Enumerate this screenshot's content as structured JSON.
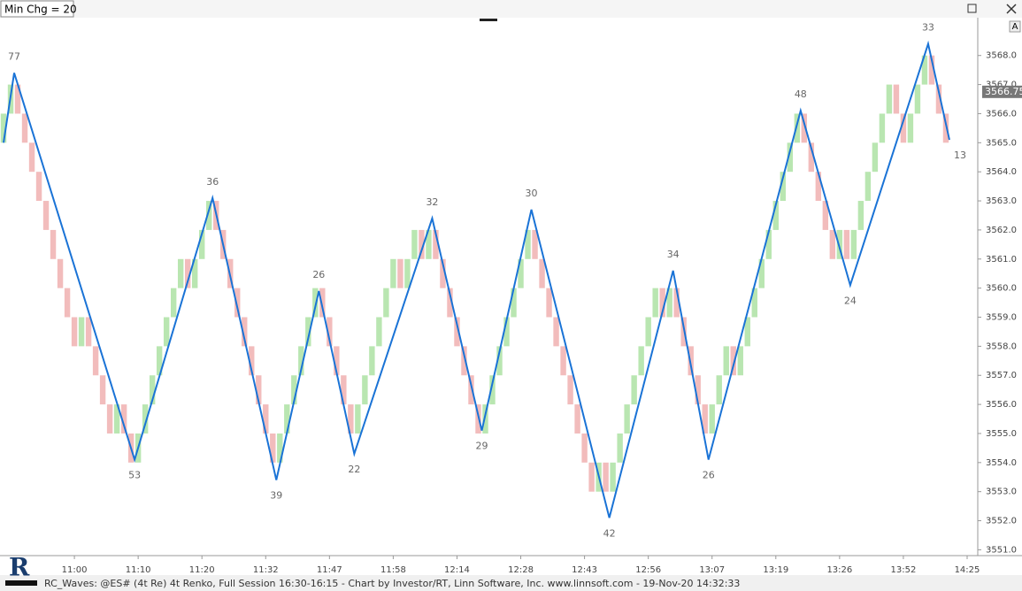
{
  "chart_data": {
    "type": "renko",
    "indicator_label": "Min Chg = 20",
    "footer": "RC_Waves: @ES# (4t Re) 4t Renko, Full Session 16:30-16:15 - Chart by Investor/RT, Linn Software, Inc. www.linnsoft.com - 19-Nov-20 14:32:33",
    "button": "A",
    "up_color": "#b9e6b1",
    "down_color": "#f2bcbc",
    "line_color": "#1a73d6",
    "xlim": [
      -0.5,
      137.5
    ],
    "ylim": [
      3550.8,
      3569.3
    ],
    "yticks": [
      {
        "value": 3551,
        "label": "3551.0"
      },
      {
        "value": 3552,
        "label": "3552.0"
      },
      {
        "value": 3553,
        "label": "3553.0"
      },
      {
        "value": 3554,
        "label": "3554.0"
      },
      {
        "value": 3555,
        "label": "3555.0"
      },
      {
        "value": 3556,
        "label": "3556.0"
      },
      {
        "value": 3557,
        "label": "3557.0"
      },
      {
        "value": 3558,
        "label": "3558.0"
      },
      {
        "value": 3559,
        "label": "3559.0"
      },
      {
        "value": 3560,
        "label": "3560.0"
      },
      {
        "value": 3561,
        "label": "3561.0"
      },
      {
        "value": 3562,
        "label": "3562.0"
      },
      {
        "value": 3563,
        "label": "3563.0"
      },
      {
        "value": 3564,
        "label": "3564.0"
      },
      {
        "value": 3565,
        "label": "3565.0"
      },
      {
        "value": 3566,
        "label": "3566.0"
      },
      {
        "value": 3567,
        "label": "3567.0"
      },
      {
        "value": 3568,
        "label": "3568.0"
      }
    ],
    "xticks": [
      {
        "value": 10,
        "label": "11:00"
      },
      {
        "value": 19,
        "label": "11:10"
      },
      {
        "value": 28,
        "label": "11:20"
      },
      {
        "value": 37,
        "label": "11:32"
      },
      {
        "value": 46,
        "label": "11:47"
      },
      {
        "value": 55,
        "label": "11:58"
      },
      {
        "value": 64,
        "label": "12:14"
      },
      {
        "value": 73,
        "label": "12:28"
      },
      {
        "value": 82,
        "label": "12:43"
      },
      {
        "value": 91,
        "label": "12:56"
      },
      {
        "value": 100,
        "label": "13:07"
      },
      {
        "value": 109,
        "label": "13:19"
      },
      {
        "value": 118,
        "label": "13:26"
      },
      {
        "value": 127,
        "label": "13:52"
      },
      {
        "value": 136,
        "label": "14:25"
      }
    ],
    "last_price": {
      "value": 3566.75,
      "label": "3566.75"
    },
    "bricks": [
      [
        3565,
        3566
      ],
      [
        3566,
        3567
      ],
      [
        3567,
        3566
      ],
      [
        3566,
        3565
      ],
      [
        3565,
        3564
      ],
      [
        3564,
        3563
      ],
      [
        3563,
        3562
      ],
      [
        3562,
        3561
      ],
      [
        3561,
        3560
      ],
      [
        3560,
        3559
      ],
      [
        3559,
        3558
      ],
      [
        3558,
        3559
      ],
      [
        3559,
        3558
      ],
      [
        3558,
        3557
      ],
      [
        3557,
        3556
      ],
      [
        3556,
        3555
      ],
      [
        3555,
        3556
      ],
      [
        3556,
        3555
      ],
      [
        3555,
        3554
      ],
      [
        3554,
        3555
      ],
      [
        3555,
        3556
      ],
      [
        3556,
        3557
      ],
      [
        3557,
        3558
      ],
      [
        3558,
        3559
      ],
      [
        3559,
        3560
      ],
      [
        3560,
        3561
      ],
      [
        3561,
        3560
      ],
      [
        3560,
        3561
      ],
      [
        3561,
        3562
      ],
      [
        3562,
        3563
      ],
      [
        3563,
        3562
      ],
      [
        3562,
        3561
      ],
      [
        3561,
        3560
      ],
      [
        3560,
        3559
      ],
      [
        3559,
        3558
      ],
      [
        3558,
        3557
      ],
      [
        3557,
        3556
      ],
      [
        3556,
        3555
      ],
      [
        3555,
        3554
      ],
      [
        3554,
        3555
      ],
      [
        3555,
        3556
      ],
      [
        3556,
        3557
      ],
      [
        3557,
        3558
      ],
      [
        3558,
        3559
      ],
      [
        3559,
        3560
      ],
      [
        3560,
        3559
      ],
      [
        3559,
        3558
      ],
      [
        3558,
        3557
      ],
      [
        3557,
        3556
      ],
      [
        3556,
        3555
      ],
      [
        3555,
        3556
      ],
      [
        3556,
        3557
      ],
      [
        3557,
        3558
      ],
      [
        3558,
        3559
      ],
      [
        3559,
        3560
      ],
      [
        3560,
        3561
      ],
      [
        3561,
        3560
      ],
      [
        3560,
        3561
      ],
      [
        3561,
        3562
      ],
      [
        3562,
        3561
      ],
      [
        3561,
        3562
      ],
      [
        3562,
        3561
      ],
      [
        3561,
        3560
      ],
      [
        3560,
        3559
      ],
      [
        3559,
        3558
      ],
      [
        3558,
        3557
      ],
      [
        3557,
        3556
      ],
      [
        3556,
        3555
      ],
      [
        3555,
        3556
      ],
      [
        3556,
        3557
      ],
      [
        3557,
        3558
      ],
      [
        3558,
        3559
      ],
      [
        3559,
        3560
      ],
      [
        3560,
        3561
      ],
      [
        3561,
        3562
      ],
      [
        3562,
        3561
      ],
      [
        3561,
        3560
      ],
      [
        3560,
        3559
      ],
      [
        3559,
        3558
      ],
      [
        3558,
        3557
      ],
      [
        3557,
        3556
      ],
      [
        3556,
        3555
      ],
      [
        3555,
        3554
      ],
      [
        3554,
        3553
      ],
      [
        3553,
        3554
      ],
      [
        3554,
        3553
      ],
      [
        3553,
        3554
      ],
      [
        3554,
        3555
      ],
      [
        3555,
        3556
      ],
      [
        3556,
        3557
      ],
      [
        3557,
        3558
      ],
      [
        3558,
        3559
      ],
      [
        3559,
        3560
      ],
      [
        3560,
        3559
      ],
      [
        3559,
        3560
      ],
      [
        3560,
        3559
      ],
      [
        3559,
        3558
      ],
      [
        3558,
        3557
      ],
      [
        3557,
        3556
      ],
      [
        3556,
        3555
      ],
      [
        3555,
        3556
      ],
      [
        3556,
        3557
      ],
      [
        3557,
        3558
      ],
      [
        3558,
        3557
      ],
      [
        3557,
        3558
      ],
      [
        3558,
        3559
      ],
      [
        3559,
        3560
      ],
      [
        3560,
        3561
      ],
      [
        3561,
        3562
      ],
      [
        3562,
        3563
      ],
      [
        3563,
        3564
      ],
      [
        3564,
        3565
      ],
      [
        3565,
        3566
      ],
      [
        3566,
        3565
      ],
      [
        3565,
        3564
      ],
      [
        3564,
        3563
      ],
      [
        3563,
        3562
      ],
      [
        3562,
        3561
      ],
      [
        3561,
        3562
      ],
      [
        3562,
        3561
      ],
      [
        3561,
        3562
      ],
      [
        3562,
        3563
      ],
      [
        3563,
        3564
      ],
      [
        3564,
        3565
      ],
      [
        3565,
        3566
      ],
      [
        3566,
        3567
      ],
      [
        3567,
        3566
      ],
      [
        3566,
        3565
      ],
      [
        3565,
        3566
      ],
      [
        3566,
        3567
      ],
      [
        3567,
        3568
      ],
      [
        3568,
        3567
      ],
      [
        3567,
        3566
      ],
      [
        3566,
        3565
      ]
    ],
    "zigzag": {
      "x": [
        0,
        1.5,
        18.5,
        29.5,
        38.5,
        44.5,
        49.5,
        60.5,
        67.5,
        74.5,
        85.5,
        94.5,
        99.5,
        112.5,
        119.5,
        130.5,
        133.5
      ],
      "y": [
        3565.0,
        3567.4,
        3554.1,
        3563.1,
        3553.4,
        3559.9,
        3554.3,
        3562.4,
        3555.1,
        3562.7,
        3552.1,
        3560.6,
        3554.1,
        3566.1,
        3560.1,
        3568.4,
        3565.1
      ],
      "labels": [
        null,
        77,
        53,
        36,
        39,
        26,
        22,
        32,
        29,
        30,
        42,
        34,
        26,
        48,
        24,
        33,
        13
      ]
    }
  }
}
